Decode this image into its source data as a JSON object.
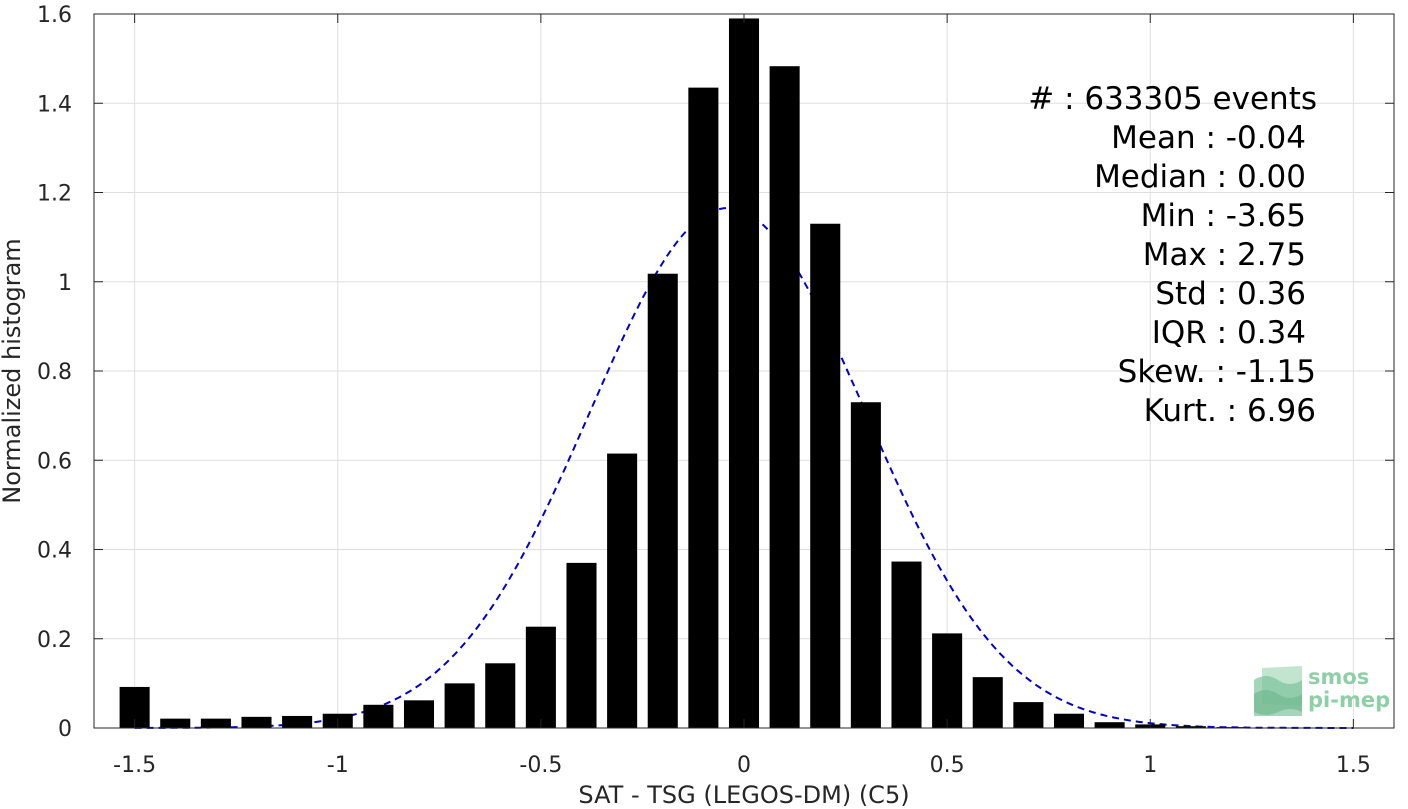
{
  "chart_data": {
    "type": "bar",
    "xlabel": "SAT - TSG (LEGOS-DM) (C5)",
    "ylabel": "Normalized histogram",
    "xlim": [
      -1.6,
      1.6
    ],
    "ylim": [
      0,
      1.6
    ],
    "xticks": [
      -1.5,
      -1,
      -0.5,
      0,
      0.5,
      1,
      1.5
    ],
    "xtick_labels": [
      "-1.5",
      "-1",
      "-0.5",
      "0",
      "0.5",
      "1",
      "1.5"
    ],
    "yticks": [
      0,
      0.2,
      0.4,
      0.6,
      0.8,
      1,
      1.2,
      1.4,
      1.6
    ],
    "ytick_labels": [
      "0",
      "0.2",
      "0.4",
      "0.6",
      "0.8",
      "1",
      "1.2",
      "1.4",
      "1.6"
    ],
    "grid": true,
    "bars": {
      "x": [
        -1.5,
        -1.4,
        -1.3,
        -1.2,
        -1.1,
        -1.0,
        -0.9,
        -0.8,
        -0.7,
        -0.6,
        -0.5,
        -0.4,
        -0.3,
        -0.2,
        -0.1,
        0.0,
        0.1,
        0.2,
        0.3,
        0.4,
        0.5,
        0.6,
        0.7,
        0.8,
        0.9,
        1.0,
        1.1,
        1.2,
        1.3,
        1.4,
        1.5
      ],
      "values": [
        0.092,
        0.021,
        0.021,
        0.025,
        0.027,
        0.032,
        0.052,
        0.062,
        0.1,
        0.145,
        0.227,
        0.37,
        0.615,
        1.018,
        1.435,
        1.59,
        1.483,
        1.13,
        0.73,
        0.373,
        0.212,
        0.114,
        0.058,
        0.032,
        0.013,
        0.008,
        0.004,
        0.002,
        0.001,
        0.001,
        0.001
      ],
      "color": "#000000"
    },
    "fit_curve": {
      "style": "dashed",
      "color": "#0000cc",
      "mean": -0.04,
      "std": 0.34,
      "peak": 1.165
    },
    "stats": [
      "#  : 633305 events",
      "Mean : -0.04",
      "Median : 0.00",
      "Min : -3.65",
      "Max : 2.75",
      "Std : 0.36",
      "IQR : 0.34",
      "Skew. : -1.15",
      "Kurt. : 6.96"
    ]
  },
  "logo": {
    "line1": "smos",
    "line2": "pi-mep",
    "color": "#8fcfa8"
  }
}
